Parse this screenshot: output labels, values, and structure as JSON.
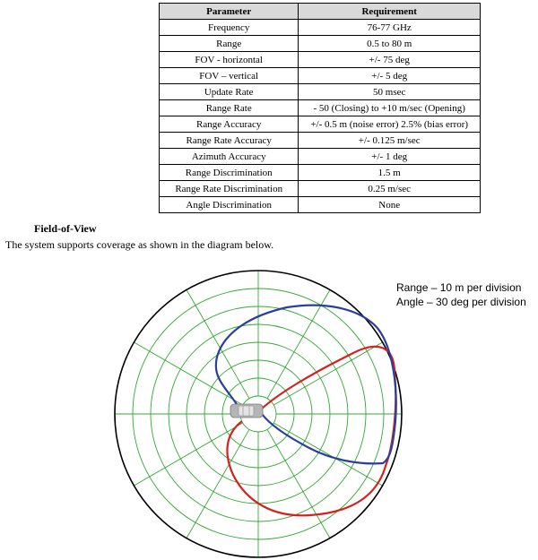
{
  "spec_table": {
    "headers": [
      "Parameter",
      "Requirement"
    ],
    "rows": [
      [
        "Frequency",
        "76-77 GHz"
      ],
      [
        "Range",
        "0.5 to 80 m"
      ],
      [
        "FOV - horizontal",
        "+/- 75 deg"
      ],
      [
        "FOV – vertical",
        "+/- 5 deg"
      ],
      [
        "Update Rate",
        "50 msec"
      ],
      [
        "Range Rate",
        "- 50 (Closing) to +10 m/sec (Opening)"
      ],
      [
        "Range Accuracy",
        "+/- 0.5 m (noise error) 2.5% (bias error)"
      ],
      [
        "Range Rate Accuracy",
        "+/- 0.125 m/sec"
      ],
      [
        "Azimuth Accuracy",
        "+/- 1 deg"
      ],
      [
        "Range Discrimination",
        "1.5 m"
      ],
      [
        "Range Rate Discrimination",
        "0.25 m/sec"
      ],
      [
        "Angle Discrimination",
        "None"
      ]
    ]
  },
  "section": {
    "heading": "Field-of-View",
    "body": "The system supports coverage as shown in the diagram below."
  },
  "diagram": {
    "legend_range": "Range – 10 m per division",
    "legend_angle": "Angle – 30 deg per division",
    "rings": 8,
    "spokes": 12,
    "colors": {
      "grid": "#33a833",
      "blue_lobe": "#2a3f9a",
      "red_lobe": "#d62020",
      "outer": "#000000",
      "vehicle": "#b5b5b5"
    }
  }
}
